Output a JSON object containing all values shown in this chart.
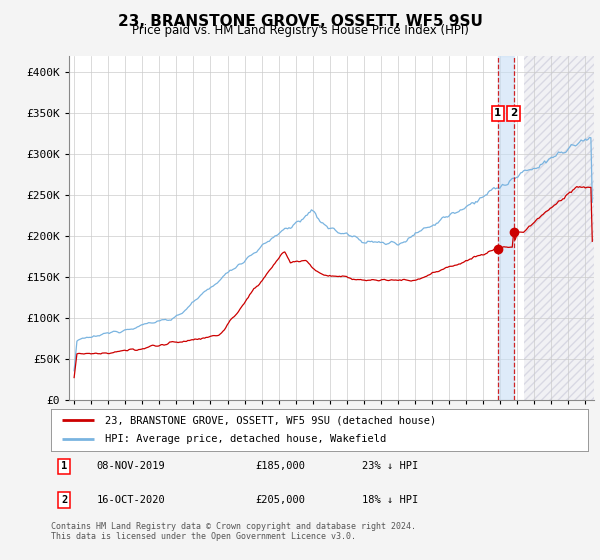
{
  "title": "23, BRANSTONE GROVE, OSSETT, WF5 9SU",
  "subtitle": "Price paid vs. HM Land Registry's House Price Index (HPI)",
  "title_fontsize": 11,
  "subtitle_fontsize": 9,
  "ylabel_ticks": [
    "£0",
    "£50K",
    "£100K",
    "£150K",
    "£200K",
    "£250K",
    "£300K",
    "£350K",
    "£400K"
  ],
  "ytick_values": [
    0,
    50000,
    100000,
    150000,
    200000,
    250000,
    300000,
    350000,
    400000
  ],
  "ylim": [
    0,
    420000
  ],
  "xlim_start": 1994.7,
  "xlim_end": 2025.5,
  "hpi_color": "#7ab4e0",
  "price_color": "#cc0000",
  "bg_color": "#f4f4f4",
  "plot_bg": "#ffffff",
  "grid_color": "#cccccc",
  "legend_label_red": "23, BRANSTONE GROVE, OSSETT, WF5 9SU (detached house)",
  "legend_label_blue": "HPI: Average price, detached house, Wakefield",
  "marker1_x": 2019.86,
  "marker1_y": 185000,
  "marker2_x": 2020.79,
  "marker2_y": 205000,
  "vline1_x": 2019.86,
  "vline2_x": 2020.79,
  "shade_start": 2021.4,
  "shade_end": 2025.5,
  "table_rows": [
    {
      "num": "1",
      "date": "08-NOV-2019",
      "price": "£185,000",
      "pct": "23% ↓ HPI"
    },
    {
      "num": "2",
      "date": "16-OCT-2020",
      "price": "£205,000",
      "pct": "18% ↓ HPI"
    }
  ],
  "footer": "Contains HM Land Registry data © Crown copyright and database right 2024.\nThis data is licensed under the Open Government Licence v3.0."
}
